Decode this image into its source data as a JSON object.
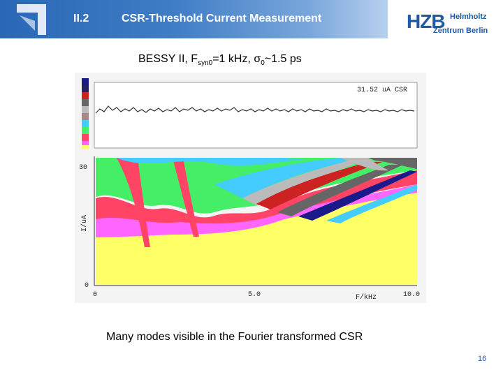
{
  "header": {
    "section_number": "II.2",
    "title": "CSR-Threshold Current Measurement",
    "band_color": "#2a67b5"
  },
  "logo": {
    "main": "HZB",
    "line1": "Helmholtz",
    "line2": "Zentrum Berlin",
    "color": "#1f5aa6"
  },
  "subtitle": {
    "prefix": "BESSY II, F",
    "sub1": "syn0",
    "middle": "=1 kHz, ",
    "sigma": "σ",
    "sub2": "0",
    "suffix": "~1.5 ps"
  },
  "plot": {
    "current_readout": "31.52 uA CSR",
    "y_ticks": [
      "30",
      "0"
    ],
    "y_label": "I/uA",
    "x_ticks": [
      "0",
      "5.0",
      "10.0"
    ],
    "x_label": "F/kHz",
    "palette": [
      "#ffff66",
      "#ff66ff",
      "#ff4466",
      "#44ee66",
      "#44ccff",
      "#666666",
      "#bbbbbb",
      "#1a1a8a",
      "#cc2222",
      "#ffffff"
    ]
  },
  "caption": "Many modes visible in the Fourier transformed CSR",
  "page_number": "16"
}
